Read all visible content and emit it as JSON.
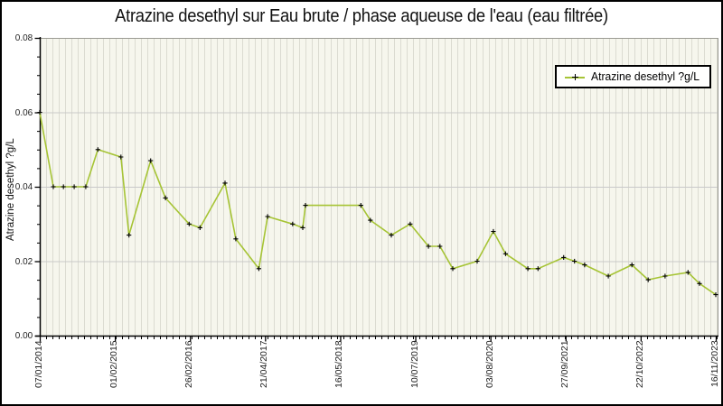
{
  "title": "Atrazine desethyl sur Eau brute / phase aqueuse de l'eau (eau filtrée)",
  "legend": {
    "label": "Atrazine desethyl ?g/L"
  },
  "y_axis": {
    "label": "Atrazine desethyl ?g/L",
    "tick_labels": [
      "0.00",
      "0.02",
      "0.04",
      "0.06",
      "0.08"
    ]
  },
  "x_axis": {
    "tick_labels": [
      "07/01/2014",
      "01/02/2015",
      "26/02/2016",
      "21/04/2017",
      "16/05/2018",
      "10/07/2019",
      "03/08/2020",
      "27/09/2021",
      "22/10/2022",
      "16/11/2023"
    ]
  },
  "colors": {
    "line": "#a6c435",
    "marker": "#000000",
    "plot_bg": "#f6f6ed",
    "stripe": "#dbdbd1",
    "hgrid": "#c9c9c9",
    "axis": "#000000",
    "frame": "#9a9a92",
    "text": "#222222"
  },
  "chart_data": {
    "type": "line",
    "title": "Atrazine desethyl sur Eau brute / phase aqueuse de l'eau (eau filtrée)",
    "xlabel": "",
    "ylabel": "Atrazine desethyl ?g/L",
    "ylim": [
      0,
      0.08
    ],
    "y_major_step": 0.02,
    "y_minor_step": 0.005,
    "grid": {
      "vertical_minor_stripes": true,
      "horizontal_major": true
    },
    "legend_position": "top-right",
    "x_tick_labels": [
      "07/01/2014",
      "01/02/2015",
      "26/02/2016",
      "21/04/2017",
      "16/05/2018",
      "10/07/2019",
      "03/08/2020",
      "27/09/2021",
      "22/10/2022",
      "16/11/2023"
    ],
    "series": [
      {
        "name": "Atrazine desethyl ?g/L",
        "marker": "plus",
        "points": [
          [
            0.0,
            0.06
          ],
          [
            0.02,
            0.04
          ],
          [
            0.035,
            0.04
          ],
          [
            0.051,
            0.04
          ],
          [
            0.068,
            0.04
          ],
          [
            0.086,
            0.05
          ],
          [
            0.12,
            0.048
          ],
          [
            0.132,
            0.027
          ],
          [
            0.164,
            0.047
          ],
          [
            0.186,
            0.037
          ],
          [
            0.221,
            0.03
          ],
          [
            0.237,
            0.029
          ],
          [
            0.274,
            0.041
          ],
          [
            0.29,
            0.026
          ],
          [
            0.324,
            0.018
          ],
          [
            0.337,
            0.032
          ],
          [
            0.374,
            0.03
          ],
          [
            0.389,
            0.029
          ],
          [
            0.393,
            0.035
          ],
          [
            0.475,
            0.035
          ],
          [
            0.489,
            0.031
          ],
          [
            0.52,
            0.027
          ],
          [
            0.548,
            0.03
          ],
          [
            0.575,
            0.024
          ],
          [
            0.592,
            0.024
          ],
          [
            0.611,
            0.018
          ],
          [
            0.647,
            0.02
          ],
          [
            0.671,
            0.028
          ],
          [
            0.689,
            0.022
          ],
          [
            0.722,
            0.018
          ],
          [
            0.737,
            0.018
          ],
          [
            0.775,
            0.021
          ],
          [
            0.791,
            0.02
          ],
          [
            0.806,
            0.019
          ],
          [
            0.841,
            0.016
          ],
          [
            0.876,
            0.019
          ],
          [
            0.9,
            0.015
          ],
          [
            0.925,
            0.016
          ],
          [
            0.959,
            0.017
          ],
          [
            0.976,
            0.014
          ],
          [
            1.0,
            0.011
          ]
        ]
      }
    ]
  }
}
